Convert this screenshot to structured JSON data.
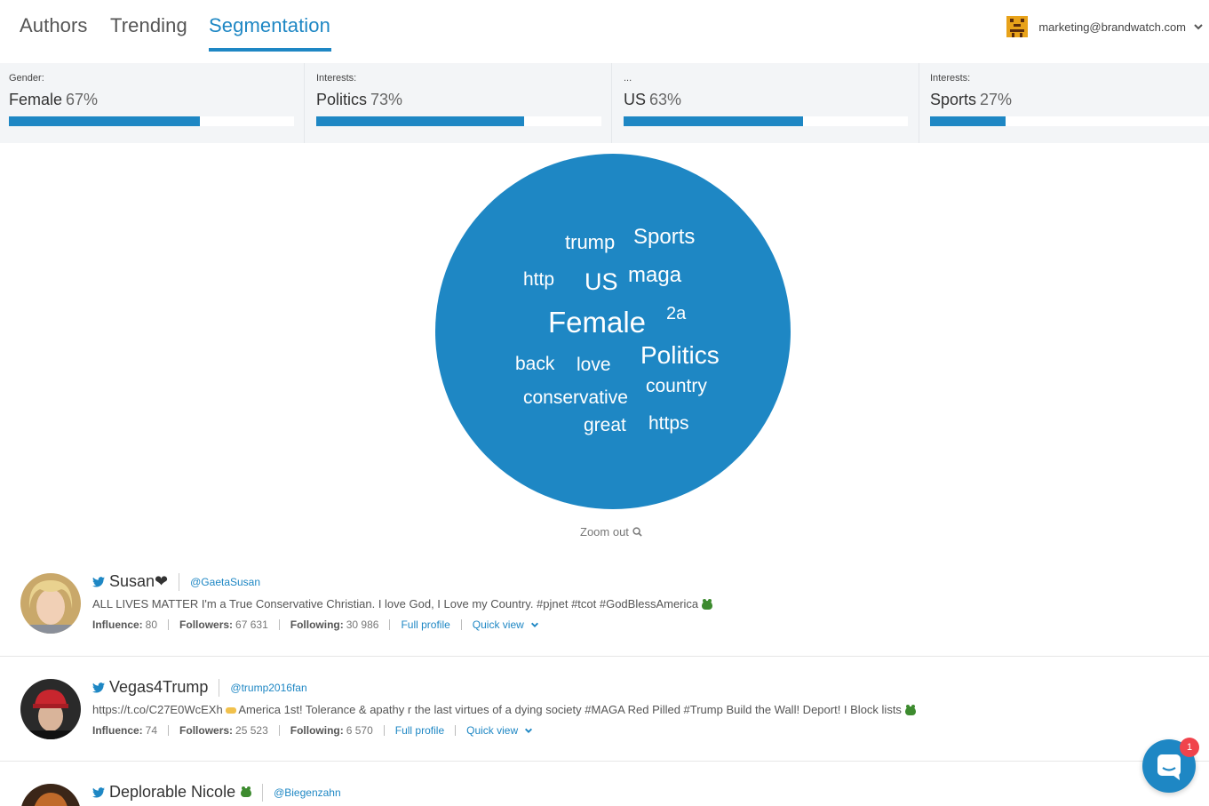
{
  "nav": {
    "tabs": [
      {
        "label": "Authors"
      },
      {
        "label": "Trending"
      },
      {
        "label": "Segmentation"
      }
    ],
    "active_tab": "Segmentation",
    "user_email": "marketing@brandwatch.com"
  },
  "segments": [
    {
      "label": "Gender:",
      "value": "Female",
      "pct_text": "67%",
      "fraction": 0.67
    },
    {
      "label": "Interests:",
      "value": "Politics",
      "pct_text": "73%",
      "fraction": 0.73
    },
    {
      "label": "...",
      "value": "US",
      "pct_text": "63%",
      "fraction": 0.63
    },
    {
      "label": "Interests:",
      "value": "Sports",
      "pct_text": "27%",
      "fraction": 0.27
    }
  ],
  "cloud": {
    "words": [
      "trump",
      "Sports",
      "http",
      "US",
      "maga",
      "Female",
      "2a",
      "back",
      "love",
      "Politics",
      "country",
      "conservative",
      "great",
      "https"
    ],
    "zoom_label": "Zoom out"
  },
  "authors": [
    {
      "name": "Susan❤",
      "handle": "@GaetaSusan",
      "bio": "ALL LIVES MATTER I'm a True Conservative Christian. I love God, I Love my Country. #pjnet #tcot #GodBlessAmerica",
      "influence_label": "Influence:",
      "influence": "80",
      "followers_label": "Followers:",
      "followers": "67 631",
      "following_label": "Following:",
      "following": "30 986",
      "full_profile": "Full profile",
      "quick_view": "Quick view"
    },
    {
      "name": "Vegas4Trump",
      "handle": "@trump2016fan",
      "bio_link": "https://t.co/C27E0WcEXh",
      "bio": "America 1st! Tolerance & apathy r the last virtues of a dying society #MAGA Red Pilled #Trump Build the Wall! Deport! I Block lists",
      "influence_label": "Influence:",
      "influence": "74",
      "followers_label": "Followers:",
      "followers": "25 523",
      "following_label": "Following:",
      "following": "6 570",
      "full_profile": "Full profile",
      "quick_view": "Quick view"
    },
    {
      "name": "Deplorable Nicole",
      "handle": "@Biegenzahn"
    }
  ],
  "chat": {
    "badge_count": "1"
  },
  "colors": {
    "accent": "#1e87c4",
    "badge": "#f0434c"
  }
}
